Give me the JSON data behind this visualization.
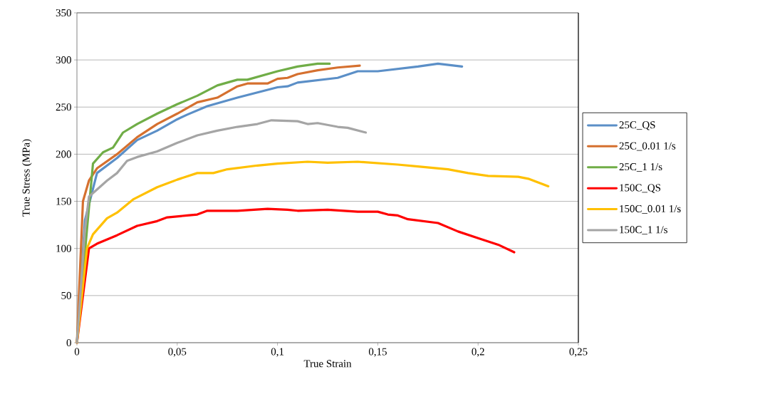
{
  "chart_data": {
    "type": "line",
    "xlabel": "True Strain",
    "ylabel": "True Stress (MPa)",
    "xlim": [
      0,
      0.25
    ],
    "ylim": [
      0,
      350
    ],
    "xticks": [
      0,
      {
        "value": 0.05,
        "label": "0,05"
      },
      {
        "value": 0.1,
        "label": "0,1"
      },
      {
        "value": 0.15,
        "label": "0,15"
      },
      {
        "value": 0.2,
        "label": "0,2"
      },
      {
        "value": 0.25,
        "label": "0,25"
      }
    ],
    "yticks": [
      0,
      50,
      100,
      150,
      200,
      250,
      300,
      350
    ],
    "grid": "y",
    "legend": "right",
    "marker": "none",
    "line_style": "solid",
    "series": [
      {
        "name": "25C_QS",
        "color": "#5b8fc7",
        "x": [
          0,
          0.004,
          0.01,
          0.02,
          0.03,
          0.04,
          0.05,
          0.055,
          0.065,
          0.08,
          0.1,
          0.105,
          0.11,
          0.13,
          0.14,
          0.15,
          0.17,
          0.18,
          0.192
        ],
        "values": [
          0,
          130,
          180,
          196,
          215,
          225,
          237,
          242,
          251,
          260,
          271,
          272,
          276,
          281,
          288,
          288,
          293,
          296,
          293
        ]
      },
      {
        "name": "25C_0.01 1/s",
        "color": "#d5702f",
        "x": [
          0,
          0.003,
          0.006,
          0.01,
          0.02,
          0.03,
          0.04,
          0.05,
          0.06,
          0.07,
          0.08,
          0.085,
          0.095,
          0.1,
          0.105,
          0.11,
          0.12,
          0.13,
          0.141
        ],
        "values": [
          0,
          150,
          172,
          185,
          200,
          218,
          232,
          243,
          255,
          260,
          272,
          275,
          275,
          280,
          281,
          285,
          289,
          292,
          294
        ]
      },
      {
        "name": "25C_1 1/s",
        "color": "#70ad47",
        "x": [
          0,
          0.005,
          0.008,
          0.013,
          0.018,
          0.023,
          0.03,
          0.04,
          0.05,
          0.06,
          0.07,
          0.08,
          0.085,
          0.1,
          0.11,
          0.12,
          0.126
        ],
        "values": [
          0,
          120,
          190,
          202,
          207,
          223,
          232,
          243,
          253,
          262,
          273,
          279,
          279,
          288,
          293,
          296,
          296
        ]
      },
      {
        "name": "150C_QS",
        "color": "#ff0000",
        "x": [
          0,
          0.006,
          0.01,
          0.02,
          0.03,
          0.04,
          0.045,
          0.055,
          0.06,
          0.065,
          0.08,
          0.095,
          0.105,
          0.11,
          0.125,
          0.14,
          0.15,
          0.155,
          0.16,
          0.165,
          0.18,
          0.19,
          0.2,
          0.21,
          0.218
        ],
        "values": [
          0,
          100,
          105,
          114,
          124,
          129,
          133,
          135,
          136,
          140,
          140,
          142,
          141,
          140,
          141,
          139,
          139,
          136,
          135,
          131,
          127,
          118,
          111,
          104,
          96
        ]
      },
      {
        "name": "150C_0.01 1/s",
        "color": "#ffc000",
        "x": [
          0,
          0.005,
          0.008,
          0.015,
          0.02,
          0.028,
          0.04,
          0.05,
          0.06,
          0.068,
          0.075,
          0.09,
          0.1,
          0.115,
          0.125,
          0.14,
          0.16,
          0.17,
          0.185,
          0.195,
          0.205,
          0.22,
          0.225,
          0.235
        ],
        "values": [
          0,
          100,
          115,
          132,
          138,
          152,
          165,
          173,
          180,
          180,
          184,
          188,
          190,
          192,
          191,
          192,
          189,
          187,
          184,
          180,
          177,
          176,
          174,
          166
        ]
      },
      {
        "name": "150C_1 1/s",
        "color": "#a5a5a5",
        "x": [
          0,
          0.004,
          0.006,
          0.015,
          0.02,
          0.025,
          0.03,
          0.04,
          0.05,
          0.06,
          0.07,
          0.08,
          0.09,
          0.097,
          0.11,
          0.115,
          0.12,
          0.13,
          0.135,
          0.144
        ],
        "values": [
          0,
          120,
          155,
          172,
          180,
          193,
          197,
          203,
          212,
          220,
          225,
          229,
          232,
          236,
          235,
          232,
          233,
          229,
          228,
          223
        ]
      }
    ]
  }
}
